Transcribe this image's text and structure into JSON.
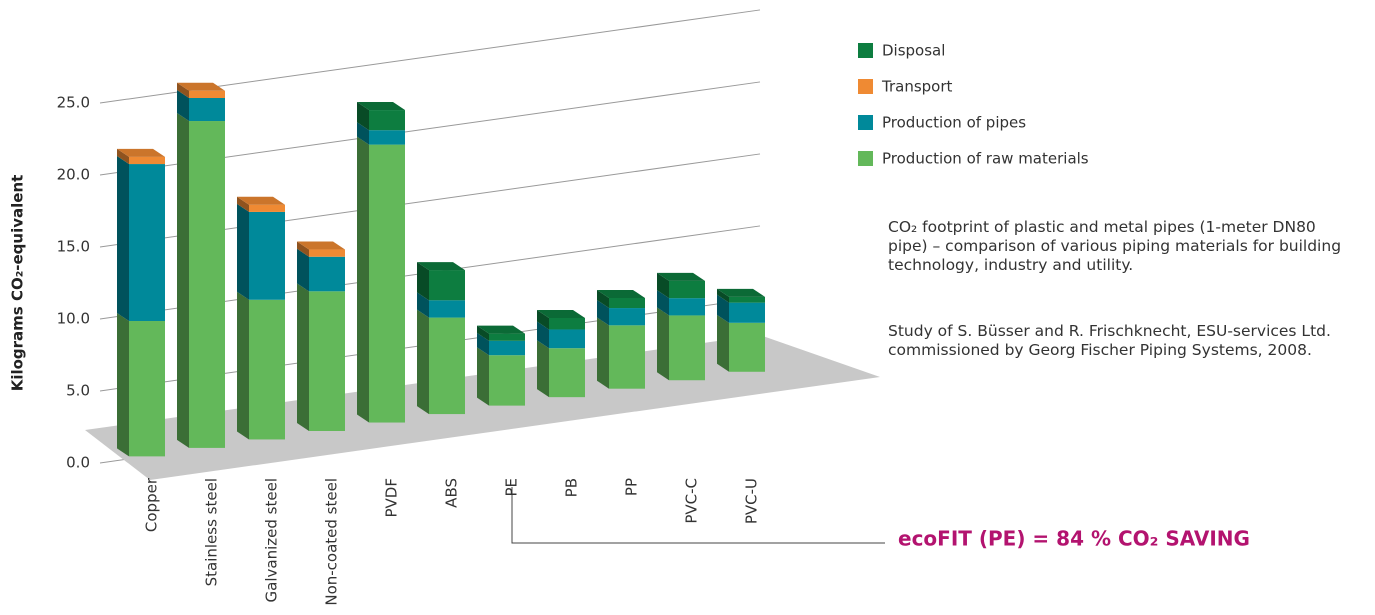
{
  "chart_data": {
    "type": "bar3d_stacked",
    "y_label": "Kilograms CO₂-equivalent",
    "categories": [
      "Copper",
      "Stainless steel",
      "Galvanized steel",
      "Non-coated steel",
      "PVDF",
      "ABS",
      "PE",
      "PB",
      "PP",
      "PVC-C",
      "PVC-U"
    ],
    "series": [
      {
        "name": "Production of raw materials",
        "color": "#63b85a",
        "values": [
          9.4,
          22.7,
          9.7,
          9.7,
          19.3,
          6.7,
          3.5,
          3.4,
          4.4,
          4.5,
          3.4
        ]
      },
      {
        "name": "Production of pipes",
        "color": "#00899a",
        "values": [
          10.9,
          1.6,
          6.1,
          2.4,
          1.0,
          1.2,
          1.0,
          1.3,
          1.2,
          1.2,
          1.4
        ]
      },
      {
        "name": "Transport",
        "color": "#ef8a33",
        "values": [
          0.5,
          0.5,
          0.5,
          0.5,
          0,
          0,
          0,
          0,
          0,
          0,
          0
        ]
      },
      {
        "name": "Disposal",
        "color": "#0d7d40",
        "values": [
          0,
          0,
          0,
          0,
          1.4,
          2.1,
          0.5,
          0.8,
          0.7,
          1.2,
          0.4
        ]
      }
    ],
    "ylim": [
      0,
      25
    ],
    "yticks": [
      {
        "value": 0,
        "label": "0.0"
      },
      {
        "value": 5,
        "label": "5.0"
      },
      {
        "value": 10,
        "label": "10.0"
      },
      {
        "value": 15,
        "label": "15.0"
      },
      {
        "value": 20,
        "label": "20.0"
      },
      {
        "value": 25,
        "label": "25.0"
      }
    ],
    "grid": true,
    "description": "CO₂ footprint of plastic and metal pipes (1-meter DN80 pipe) – comparison of various piping materials for building technology, industry and utility.",
    "source": "Study of S. Büsser and R. Frischknecht, ESU-services Ltd. commissioned by Georg Fischer Piping Systems, 2008.",
    "annotation": "ecoFIT (PE) = 84 % CO₂ SAVING"
  }
}
